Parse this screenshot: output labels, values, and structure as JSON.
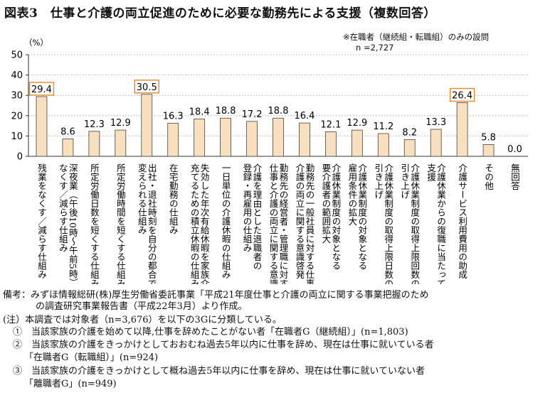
{
  "title": "図表3　仕事と介護の両立促進のために必要な勤務先による支援（複数回答）",
  "note_respondents": "※在職者（継続組・転職組）のみの設問",
  "note_n": "n =2,727",
  "colors": {
    "bar": "#f8dfbd",
    "bar_border": "#444444",
    "highlight": "#e08a2a",
    "axis": "#333333",
    "grid": "#9a9a9a"
  },
  "chart_data": {
    "type": "bar",
    "unit_label": "（%）",
    "ylim": [
      0,
      50
    ],
    "yticks": [
      0,
      10,
      20,
      30,
      40,
      50
    ],
    "grid": "dotted horizontal",
    "categories": [
      "残業をなくす／減らす仕組み",
      "深夜業（午後10時～午前5時）をなくす／減らす仕組み",
      "所定労働日数を短くする仕組み",
      "所定労働時間を短くする仕組み",
      "出社・退社時刻を自分の都合で変えられる仕組み",
      "在宅勤務の仕組み",
      "失効した年次有給休暇を家族介護に充てるための積立休暇の仕組み",
      "一日単位の介護休暇の仕組み",
      "介護を理由とした退職者の登録・再雇用の仕組み",
      "勤務先の経営者・管理職に対する仕事と介護の両立に関する意識啓発",
      "勤務先の一般社員に対する仕事と介護の両立に関する意識啓発",
      "介護休業制度の対象となる要介護者の範囲拡大",
      "介護休業制度の対象となる雇用条件の拡大",
      "介護休業制度の取得上限日数の引き上げ",
      "介護休業制度の取得上限回数の引き上げ",
      "介護休業からの復職に当たっての支援",
      "介護サービス利用費用の助成",
      "その他",
      "無回答"
    ],
    "category_lines": [
      [
        "残業をなくす／減らす仕組み"
      ],
      [
        "深夜業（午後10時～午前5時）を",
        "なくす／減らす仕組み"
      ],
      [
        "所定労働日数を短くする仕組み"
      ],
      [
        "所定労働時間を短くする仕組み"
      ],
      [
        "出社・退社時刻を自分の都合で",
        "変えられる仕組み"
      ],
      [
        "在宅勤務の仕組み"
      ],
      [
        "失効した年次有給休暇を家族介護に",
        "充てるための積立休暇の仕組み"
      ],
      [
        "一日単位の介護休暇の仕組み"
      ],
      [
        "介護を理由とした退職者の",
        "登録・再雇用の仕組み"
      ],
      [
        "勤務先の経営者・管理職に対する",
        "仕事と介護の両立に関する意識啓発"
      ],
      [
        "勤務先の一般社員に対する仕事と",
        "介護の両立に関する意識啓発"
      ],
      [
        "介護休業制度の対象となる",
        "要介護者の範囲拡大"
      ],
      [
        "介護休業制度の対象となる",
        "雇用条件の拡大"
      ],
      [
        "介護休業制度の取得上限日数の",
        "引き上げ"
      ],
      [
        "介護休業制度の取得上限回数の",
        "引き上げ"
      ],
      [
        "介護休業からの復職に当たっての",
        "支援"
      ],
      [
        "介護サービス利用費用の助成"
      ],
      [
        "その他"
      ],
      [
        "無回答"
      ]
    ],
    "values": [
      29.4,
      8.6,
      12.3,
      12.9,
      30.5,
      16.3,
      18.4,
      18.8,
      17.2,
      18.8,
      16.4,
      12.1,
      12.9,
      11.2,
      8.2,
      13.3,
      26.4,
      5.8,
      0.0
    ],
    "labels": [
      "29.4",
      "8.6",
      "12.3",
      "12.9",
      "30.5",
      "16.3",
      "18.4",
      "18.8",
      "17.2",
      "18.8",
      "16.4",
      "12.1",
      "12.9",
      "11.2",
      "8.2",
      "13.3",
      "26.4",
      "5.8",
      "0.0"
    ],
    "highlighted": [
      0,
      4,
      16
    ]
  },
  "footer": {
    "source_line1": "備考：みずほ情報総研(株)厚生労働省委託事業「平成21年度仕事と介護の両立に関する事業把握のため",
    "source_line2": "の調査研究事業報告書（平成22年3月）より作成。",
    "note_line": "(注）本調査では対象者（n=3,676）を以下の3Gに分類している。",
    "item1": "①　当該家族の介護を始めて以降,仕事を辞めたことがない者「在職者G（継続組）」(n=1,803)",
    "item2a": "②　当該家族の介護をきっかけとしておおむね過去5年以内に仕事を辞め、現在は仕事に就いている者",
    "item2b": "「在職者G（転職組）」(n=924)",
    "item3a": "③　当該家族の介護をきっかけとして概ね過去5年以内に仕事を辞め、現在は仕事に就いていない者",
    "item3b": "「離職者G」(n=949)"
  }
}
